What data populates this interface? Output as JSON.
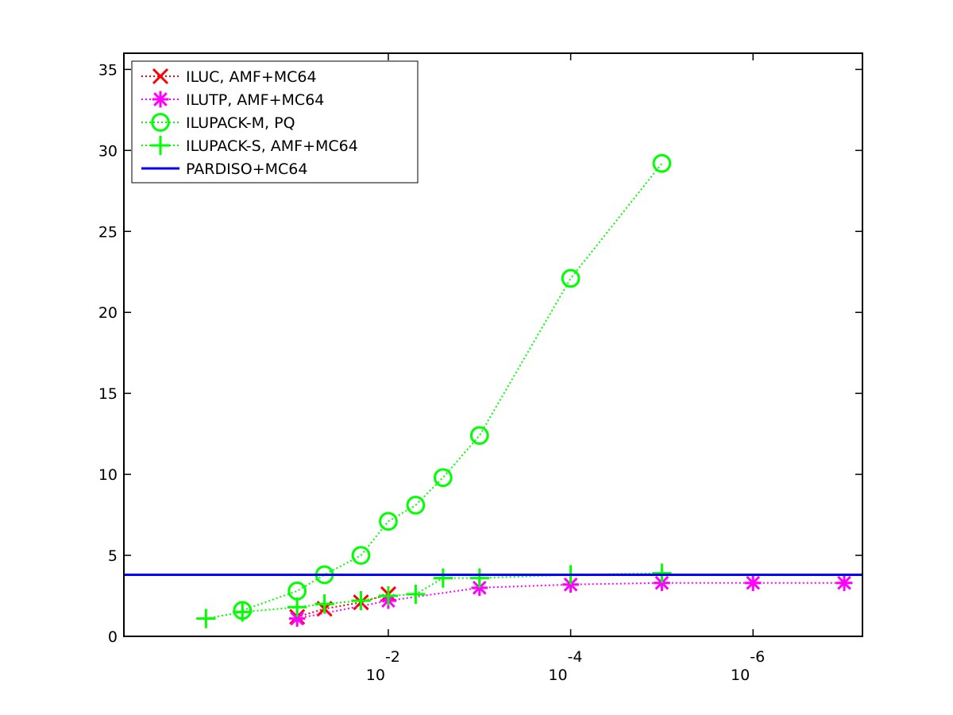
{
  "chart_data": {
    "type": "line",
    "title": "",
    "xlabel": "",
    "ylabel": "",
    "x_scale": "log-reversed",
    "x_range_exponent": [
      0.9,
      -7.2
    ],
    "ylim": [
      0,
      36
    ],
    "y_ticks": [
      0,
      5,
      10,
      15,
      20,
      25,
      30,
      35
    ],
    "x_ticks": [
      {
        "exponent": -2,
        "base": "10",
        "sup": "-2"
      },
      {
        "exponent": -4,
        "base": "10",
        "sup": "-4"
      },
      {
        "exponent": -6,
        "base": "10",
        "sup": "-6"
      }
    ],
    "grid": false,
    "legend_position": "top-left",
    "series": [
      {
        "name": "ILUC, AMF+MC64",
        "color": "#ff0000",
        "marker": "x",
        "line": "dotted",
        "x_exp": [
          -1,
          -1.3,
          -1.7,
          -2
        ],
        "y": [
          1.2,
          1.7,
          2.1,
          2.6
        ]
      },
      {
        "name": "ILUTP, AMF+MC64",
        "color": "#ff00ff",
        "marker": "asterisk",
        "line": "dotted",
        "x_exp": [
          -1,
          -2,
          -3,
          -4,
          -5,
          -6,
          -7
        ],
        "y": [
          1.1,
          2.2,
          3.0,
          3.2,
          3.3,
          3.3,
          3.3
        ]
      },
      {
        "name": "ILUPACK-M, PQ",
        "color": "#00ff00",
        "marker": "circle",
        "line": "dotted",
        "x_exp": [
          -0.4,
          -1,
          -1.3,
          -1.7,
          -2,
          -2.3,
          -2.6,
          -3,
          -4,
          -5
        ],
        "y": [
          1.6,
          2.8,
          3.8,
          5.0,
          7.1,
          8.1,
          9.8,
          12.4,
          22.1,
          29.2
        ]
      },
      {
        "name": "ILUPACK-S, AMF+MC64",
        "color": "#00ff00",
        "marker": "plus",
        "line": "dotted",
        "x_exp": [
          0,
          -0.4,
          -1,
          -1.3,
          -1.7,
          -2,
          -2.3,
          -2.6,
          -3,
          -4,
          -5
        ],
        "y": [
          1.1,
          1.5,
          1.8,
          2.0,
          2.2,
          2.5,
          2.6,
          3.6,
          3.6,
          3.8,
          3.9
        ]
      },
      {
        "name": "PARDISO+MC64",
        "color": "#0000ff",
        "marker": "none",
        "line": "solid",
        "x_exp": [
          0.9,
          -7.2
        ],
        "y": [
          3.8,
          3.8
        ]
      }
    ]
  }
}
